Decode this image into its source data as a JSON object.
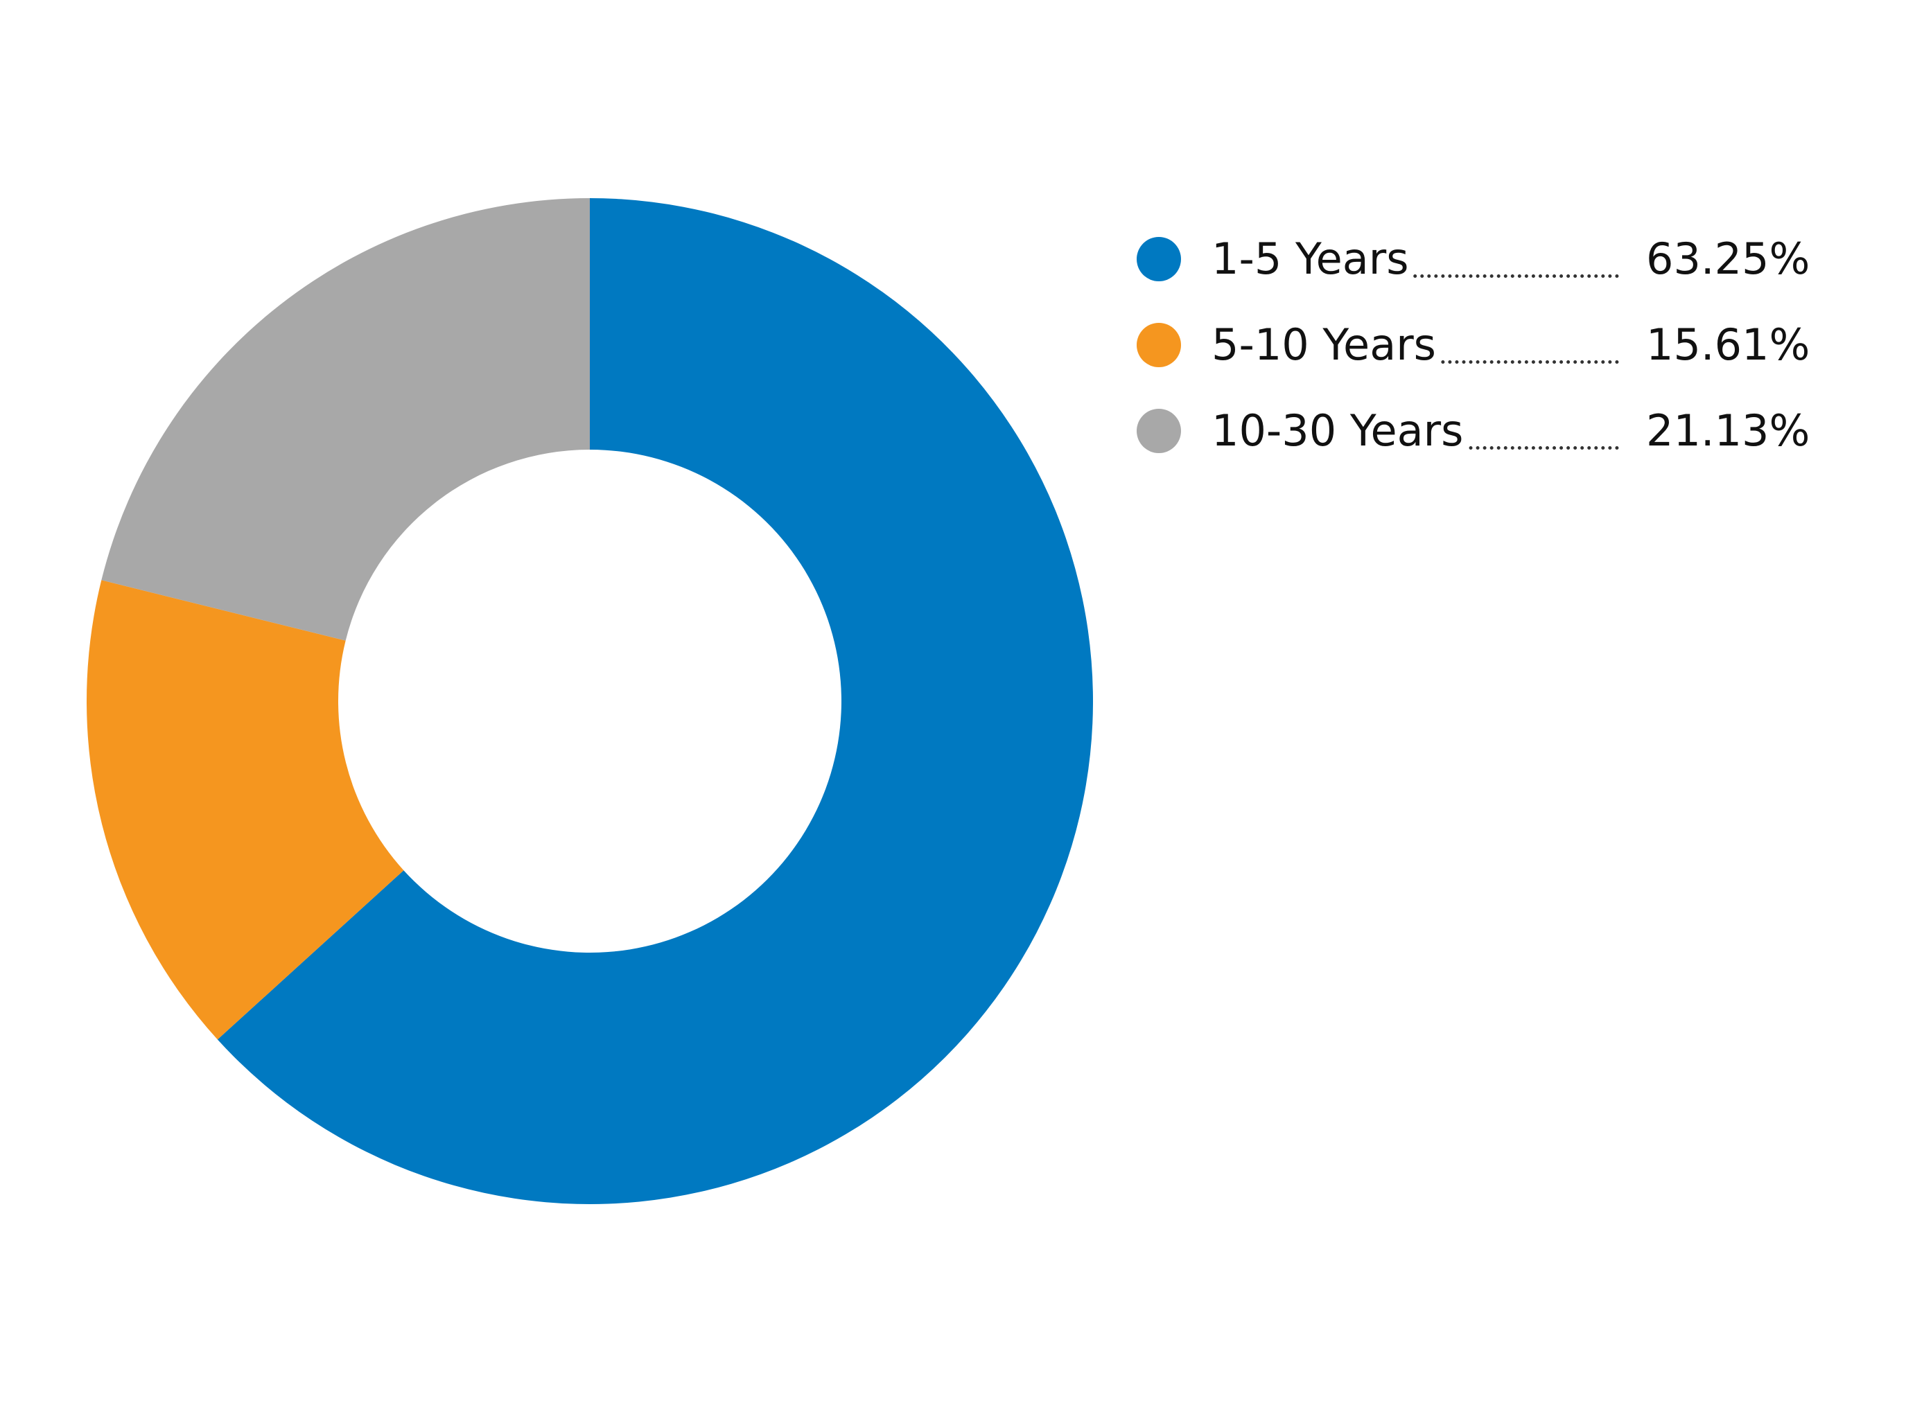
{
  "chart_data": {
    "type": "pie",
    "donut": true,
    "title": "",
    "legend_position": "right",
    "slices": [
      {
        "label": "1-5 Years",
        "value": 63.25,
        "display": "63.25%",
        "color": "#0079C1"
      },
      {
        "label": "5-10 Years",
        "value": 15.61,
        "display": "15.61%",
        "color": "#F5961F"
      },
      {
        "label": "10-30 Years",
        "value": 21.13,
        "display": "21.13%",
        "color": "#A8A8A8"
      }
    ]
  }
}
